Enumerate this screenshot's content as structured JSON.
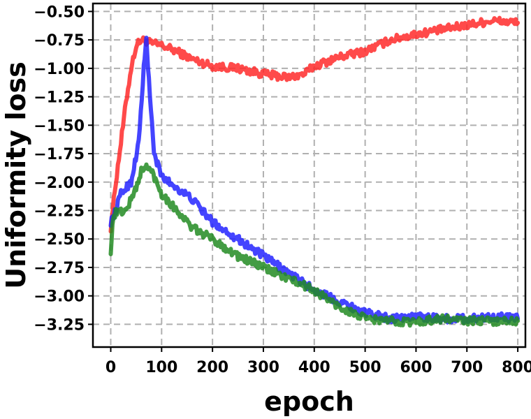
{
  "chart_data": {
    "type": "line",
    "title": "",
    "xlabel": "epoch",
    "ylabel": "Uniformity loss",
    "xlim": [
      -35,
      815
    ],
    "ylim": [
      -3.45,
      -0.43
    ],
    "xticks": [
      0,
      100,
      200,
      300,
      400,
      500,
      600,
      700,
      800
    ],
    "yticks": [
      -3.25,
      -3.0,
      -2.75,
      -2.5,
      -2.25,
      -2.0,
      -1.75,
      -1.5,
      -1.25,
      -1.0,
      -0.75,
      -0.5
    ],
    "xtick_labels": [
      "0",
      "100",
      "200",
      "300",
      "400",
      "500",
      "600",
      "700",
      "800"
    ],
    "ytick_labels": [
      "−3.25",
      "−3.00",
      "−2.75",
      "−2.50",
      "−2.25",
      "−2.00",
      "−1.75",
      "−1.50",
      "−1.25",
      "−1.00",
      "−0.75",
      "−0.50"
    ],
    "grid": true,
    "legend": "none",
    "series": [
      {
        "color": "#ff2a2a",
        "x": [
          0,
          10,
          20,
          30,
          40,
          50,
          60,
          70,
          80,
          100,
          130,
          160,
          200,
          250,
          300,
          350,
          380,
          400,
          450,
          500,
          550,
          600,
          650,
          700,
          750,
          800
        ],
        "y": [
          -2.4,
          -2.0,
          -1.65,
          -1.3,
          -1.0,
          -0.8,
          -0.75,
          -0.76,
          -0.78,
          -0.8,
          -0.85,
          -0.92,
          -0.98,
          -1.0,
          -1.05,
          -1.08,
          -1.05,
          -0.98,
          -0.9,
          -0.85,
          -0.75,
          -0.7,
          -0.66,
          -0.62,
          -0.58,
          -0.6
        ]
      },
      {
        "color": "#2323ff",
        "x": [
          0,
          10,
          20,
          40,
          55,
          65,
          70,
          75,
          85,
          100,
          130,
          160,
          200,
          250,
          300,
          350,
          400,
          450,
          500,
          550,
          600,
          650,
          700,
          750,
          800
        ],
        "y": [
          -2.35,
          -2.25,
          -2.1,
          -2.0,
          -1.65,
          -1.0,
          -0.75,
          -1.1,
          -1.75,
          -1.95,
          -2.05,
          -2.15,
          -2.35,
          -2.5,
          -2.65,
          -2.8,
          -2.95,
          -3.05,
          -3.15,
          -3.2,
          -3.18,
          -3.2,
          -3.2,
          -3.18,
          -3.2
        ]
      },
      {
        "color": "#228b22",
        "x": [
          0,
          5,
          10,
          30,
          50,
          60,
          70,
          80,
          100,
          130,
          160,
          200,
          250,
          300,
          350,
          400,
          450,
          500,
          550,
          600,
          650,
          700,
          750,
          800
        ],
        "y": [
          -2.6,
          -2.3,
          -2.27,
          -2.25,
          -2.05,
          -1.9,
          -1.87,
          -1.9,
          -2.1,
          -2.25,
          -2.4,
          -2.5,
          -2.65,
          -2.75,
          -2.85,
          -2.95,
          -3.1,
          -3.2,
          -3.22,
          -3.23,
          -3.2,
          -3.22,
          -3.22,
          -3.22
        ]
      }
    ]
  }
}
